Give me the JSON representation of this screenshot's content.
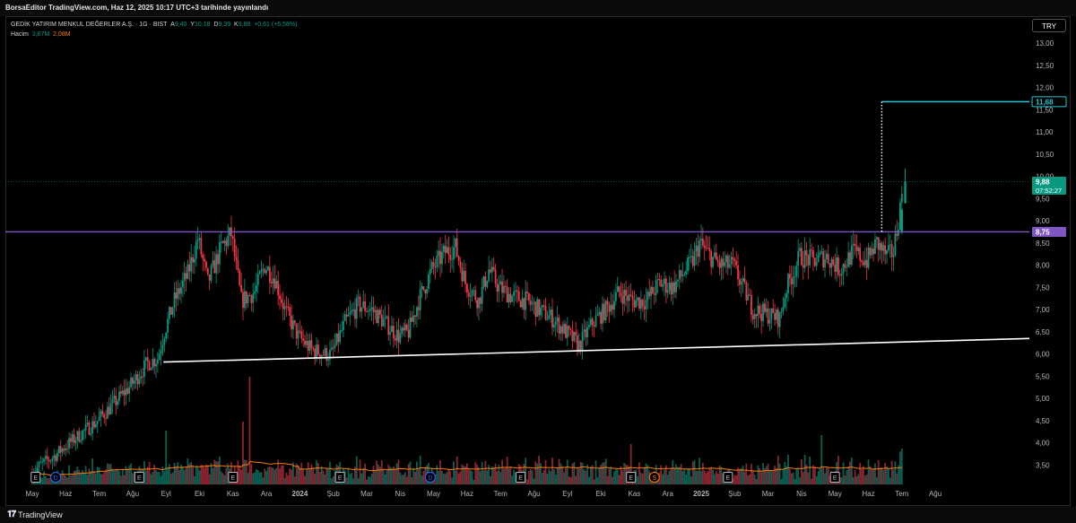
{
  "header": {
    "publish_line": "BorsaEditor TradingView.com, Haz 12, 2025 10:17 UTC+3 tarihinde yayınlandı"
  },
  "legend": {
    "symbol": "GEDİK YATIRIM MENKUL DEĞERLER A.Ş. · 1G · BIST",
    "o_label": "A",
    "o_value": "9,40",
    "h_label": "Y",
    "h_value": "10,18",
    "l_label": "D",
    "l_value": "9,39",
    "c_label": "K",
    "c_value": "9,88",
    "change": "+0,61 (+6,58%)",
    "volume_label": "Hacim",
    "volume_value": "3,67M",
    "volume_ma": "2,08M"
  },
  "currency": "TRY",
  "footer": {
    "brand": "TradingView"
  },
  "colors": {
    "up": "#089981",
    "down": "#f23645",
    "support_line": "#ffffff",
    "resistance_line": "#7e57c2",
    "target_line": "#26c6da",
    "last_price_badge": "#089981",
    "volume_ma": "#f57c00"
  },
  "chart_data": {
    "type": "candlestick",
    "y_ticks": [
      "13,00",
      "12,50",
      "12,00",
      "11,50",
      "11,00",
      "10,50",
      "10,00",
      "9,50",
      "9,00",
      "8,50",
      "8,00",
      "7,50",
      "7,00",
      "6,50",
      "6,00",
      "5,50",
      "5,00",
      "4,50",
      "4,00",
      "3,50"
    ],
    "ylim": [
      3.25,
      13.0
    ],
    "x_ticks": [
      "May",
      "Haz",
      "Tem",
      "Ağu",
      "Eyl",
      "Eki",
      "Kas",
      "Ara",
      "2024",
      "Şub",
      "Mar",
      "Nis",
      "May",
      "Haz",
      "Tem",
      "Ağu",
      "Eyl",
      "Eki",
      "Kas",
      "Ara",
      "2025",
      "Şub",
      "Mar",
      "Nis",
      "May",
      "Haz",
      "Tem",
      "Ağu"
    ],
    "price_path": [
      [
        0,
        3.3
      ],
      [
        0.3,
        3.5
      ],
      [
        0.7,
        3.7
      ],
      [
        1.0,
        3.9
      ],
      [
        1.5,
        4.2
      ],
      [
        2.0,
        4.5
      ],
      [
        2.5,
        4.9
      ],
      [
        3.0,
        5.3
      ],
      [
        3.5,
        5.8
      ],
      [
        3.8,
        5.9
      ],
      [
        4.0,
        6.5
      ],
      [
        4.3,
        7.2
      ],
      [
        4.7,
        7.8
      ],
      [
        5.0,
        8.6
      ],
      [
        5.3,
        7.6
      ],
      [
        5.7,
        8.4
      ],
      [
        6.0,
        8.7
      ],
      [
        6.3,
        7.2
      ],
      [
        6.7,
        7.4
      ],
      [
        7.0,
        8.0
      ],
      [
        7.3,
        7.7
      ],
      [
        7.6,
        7.0
      ],
      [
        8.0,
        6.4
      ],
      [
        8.4,
        6.1
      ],
      [
        8.8,
        6.0
      ],
      [
        9.0,
        6.0
      ],
      [
        9.4,
        6.7
      ],
      [
        9.8,
        7.1
      ],
      [
        10.2,
        7.0
      ],
      [
        10.6,
        6.7
      ],
      [
        11.0,
        6.4
      ],
      [
        11.3,
        6.5
      ],
      [
        11.6,
        7.2
      ],
      [
        12.0,
        7.9
      ],
      [
        12.4,
        8.3
      ],
      [
        12.7,
        8.4
      ],
      [
        13.0,
        7.6
      ],
      [
        13.4,
        7.2
      ],
      [
        13.7,
        7.9
      ],
      [
        14.0,
        7.5
      ],
      [
        14.4,
        7.3
      ],
      [
        14.8,
        7.2
      ],
      [
        15.2,
        7.0
      ],
      [
        15.6,
        6.8
      ],
      [
        16.0,
        6.5
      ],
      [
        16.4,
        6.2
      ],
      [
        16.8,
        6.7
      ],
      [
        17.2,
        7.0
      ],
      [
        17.6,
        7.4
      ],
      [
        18.0,
        7.2
      ],
      [
        18.4,
        7.2
      ],
      [
        18.8,
        7.6
      ],
      [
        19.2,
        7.5
      ],
      [
        19.5,
        7.8
      ],
      [
        19.8,
        8.1
      ],
      [
        20.0,
        8.5
      ],
      [
        20.2,
        8.3
      ],
      [
        20.6,
        8.0
      ],
      [
        21.0,
        8.0
      ],
      [
        21.3,
        7.5
      ],
      [
        21.6,
        7.0
      ],
      [
        22.0,
        6.9
      ],
      [
        22.4,
        6.8
      ],
      [
        22.6,
        7.5
      ],
      [
        23.0,
        8.2
      ],
      [
        23.4,
        8.1
      ],
      [
        23.8,
        8.2
      ],
      [
        24.2,
        7.9
      ],
      [
        24.6,
        8.3
      ],
      [
        25.0,
        8.1
      ],
      [
        25.3,
        8.5
      ],
      [
        25.6,
        8.2
      ],
      [
        25.8,
        8.3
      ],
      [
        26.0,
        9.3
      ],
      [
        26.1,
        9.88
      ]
    ],
    "volume_bars": "approximate daily volume histogram with spikes around Eyl 2023, Kas 2023 and Haz 2025",
    "volume_ma_line": true,
    "lines": [
      {
        "label": "",
        "style": "support trendline",
        "from": [
          "Eyl 2023",
          5.82
        ],
        "to": [
          "Haz 2025",
          6.35
        ]
      },
      {
        "label": "8,75",
        "style": "horizontal resistance",
        "value": 8.75
      },
      {
        "label": "11,68",
        "style": "target",
        "value": 11.68,
        "from": "May 2025"
      },
      {
        "label": "9,88",
        "style": "last price",
        "value": 9.88,
        "countdown": "07:52:27"
      }
    ],
    "event_markers": [
      "E",
      "D",
      "E",
      "E",
      "E",
      "D",
      "E",
      "E",
      "S",
      "E",
      "E"
    ],
    "grid": false,
    "legend_position": "top-left"
  }
}
